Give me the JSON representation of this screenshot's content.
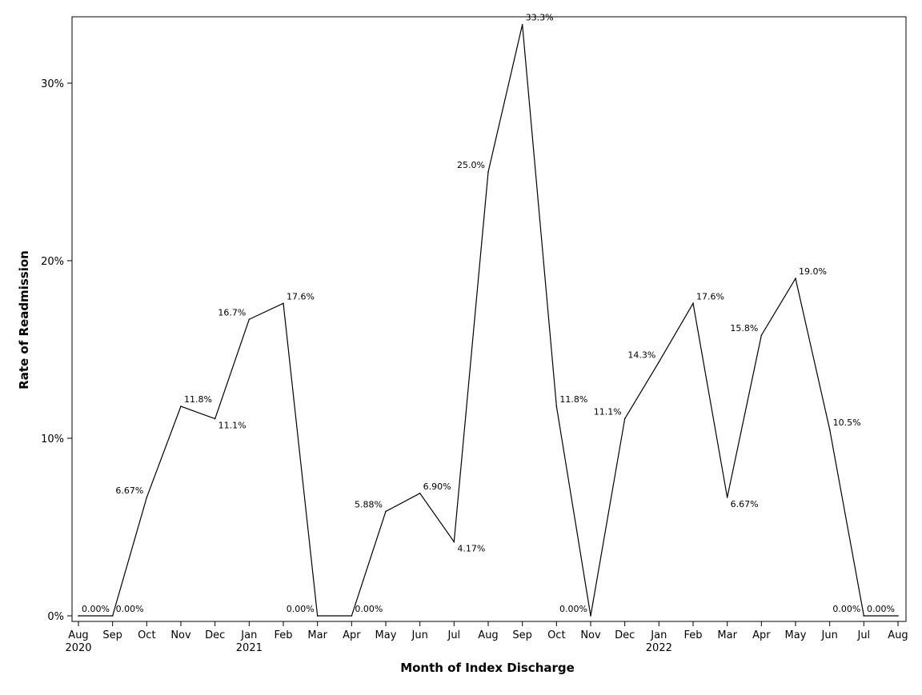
{
  "chart_data": {
    "type": "line",
    "xlabel": "Month of Index Discharge",
    "ylabel": "Rate of Readmission",
    "ylim": [
      0,
      33.3
    ],
    "yticks": [
      {
        "value": 0,
        "label": "0%"
      },
      {
        "value": 10,
        "label": "10%"
      },
      {
        "value": 20,
        "label": "20%"
      },
      {
        "value": 30,
        "label": "30%"
      }
    ],
    "grid": false,
    "x": [
      "Aug 2020",
      "Sep 2020",
      "Oct 2020",
      "Nov 2020",
      "Dec 2020",
      "Jan 2021",
      "Feb 2021",
      "Mar 2021",
      "Apr 2021",
      "May 2021",
      "Jun 2021",
      "Jul 2021",
      "Aug 2021",
      "Sep 2021",
      "Oct 2021",
      "Nov 2021",
      "Dec 2021",
      "Jan 2022",
      "Feb 2022",
      "Mar 2022",
      "Apr 2022",
      "May 2022",
      "Jun 2022",
      "Jul 2022",
      "Aug 2022"
    ],
    "tick_labels": [
      {
        "month": "Aug",
        "year": "2020"
      },
      {
        "month": "Sep",
        "year": ""
      },
      {
        "month": "Oct",
        "year": ""
      },
      {
        "month": "Nov",
        "year": ""
      },
      {
        "month": "Dec",
        "year": ""
      },
      {
        "month": "Jan",
        "year": "2021"
      },
      {
        "month": "Feb",
        "year": ""
      },
      {
        "month": "Mar",
        "year": ""
      },
      {
        "month": "Apr",
        "year": ""
      },
      {
        "month": "May",
        "year": ""
      },
      {
        "month": "Jun",
        "year": ""
      },
      {
        "month": "Jul",
        "year": ""
      },
      {
        "month": "Aug",
        "year": ""
      },
      {
        "month": "Sep",
        "year": ""
      },
      {
        "month": "Oct",
        "year": ""
      },
      {
        "month": "Nov",
        "year": ""
      },
      {
        "month": "Dec",
        "year": ""
      },
      {
        "month": "Jan",
        "year": "2022"
      },
      {
        "month": "Feb",
        "year": ""
      },
      {
        "month": "Mar",
        "year": ""
      },
      {
        "month": "Apr",
        "year": ""
      },
      {
        "month": "May",
        "year": ""
      },
      {
        "month": "Jun",
        "year": ""
      },
      {
        "month": "Jul",
        "year": ""
      },
      {
        "month": "Aug",
        "year": ""
      }
    ],
    "series": [
      {
        "values": [
          0,
          0,
          6.67,
          11.8,
          11.1,
          16.7,
          17.6,
          0,
          0,
          5.88,
          6.9,
          4.17,
          25.0,
          33.3,
          11.8,
          0,
          11.1,
          14.3,
          17.6,
          6.67,
          15.8,
          19.0,
          10.5,
          0,
          0
        ],
        "data_labels": [
          "0.00%",
          "0.00%",
          "6.67%",
          "11.8%",
          "11.1%",
          "16.7%",
          "17.6%",
          "0.00%",
          "0.00%",
          "5.88%",
          "6.90%",
          "4.17%",
          "25.0%",
          "33.3%",
          "11.8%",
          "0.00%",
          "11.1%",
          "14.3%",
          "17.6%",
          "6.67%",
          "15.8%",
          "19.0%",
          "10.5%",
          "0.00%",
          "0.00%"
        ],
        "color": "#000000"
      }
    ]
  }
}
